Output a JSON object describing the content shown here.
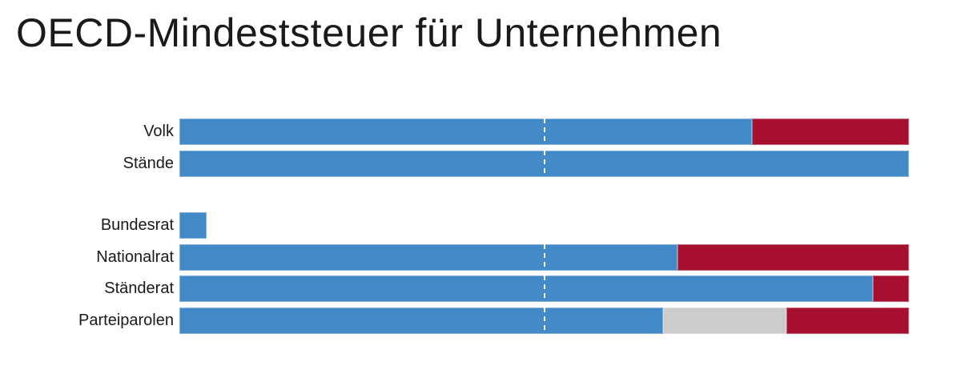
{
  "page": {
    "background_color": "#ffffff"
  },
  "chart_data": {
    "type": "bar",
    "orientation": "horizontal-stacked",
    "title": "OECD-Mindeststeuer für Unternehmen",
    "xlabel": "",
    "ylabel": "",
    "xlim_pct": [
      0,
      100
    ],
    "grid": false,
    "legend_position": "none",
    "midline_pct": 50,
    "midline_style": "dashed-white",
    "colors": {
      "yes": "#4289c8",
      "no": "#a60f2d",
      "neutral": "#cccccc",
      "title_text": "#1a1a1a",
      "label_text": "#1a1a1a"
    },
    "rows": [
      {
        "label": "Volk",
        "group": "volksabstimmung",
        "midline": true,
        "segments": [
          {
            "name": "yes",
            "pct": 78.5
          },
          {
            "name": "no",
            "pct": 21.5
          }
        ]
      },
      {
        "label": "Stände",
        "group": "volksabstimmung",
        "midline": true,
        "segments": [
          {
            "name": "yes",
            "pct": 100
          }
        ]
      },
      {
        "label": "Bundesrat",
        "group": "behoerden",
        "midline": false,
        "segments": [
          {
            "name": "yes",
            "pct": 3.7
          }
        ]
      },
      {
        "label": "Nationalrat",
        "group": "behoerden",
        "midline": true,
        "segments": [
          {
            "name": "yes",
            "pct": 68.3
          },
          {
            "name": "no",
            "pct": 31.7
          }
        ]
      },
      {
        "label": "Ständerat",
        "group": "behoerden",
        "midline": true,
        "segments": [
          {
            "name": "yes",
            "pct": 95.1
          },
          {
            "name": "no",
            "pct": 4.9
          }
        ]
      },
      {
        "label": "Parteiparolen",
        "group": "behoerden",
        "midline": true,
        "segments": [
          {
            "name": "yes",
            "pct": 66.3
          },
          {
            "name": "neutral",
            "pct": 16.9
          },
          {
            "name": "no",
            "pct": 16.8
          }
        ]
      }
    ]
  }
}
